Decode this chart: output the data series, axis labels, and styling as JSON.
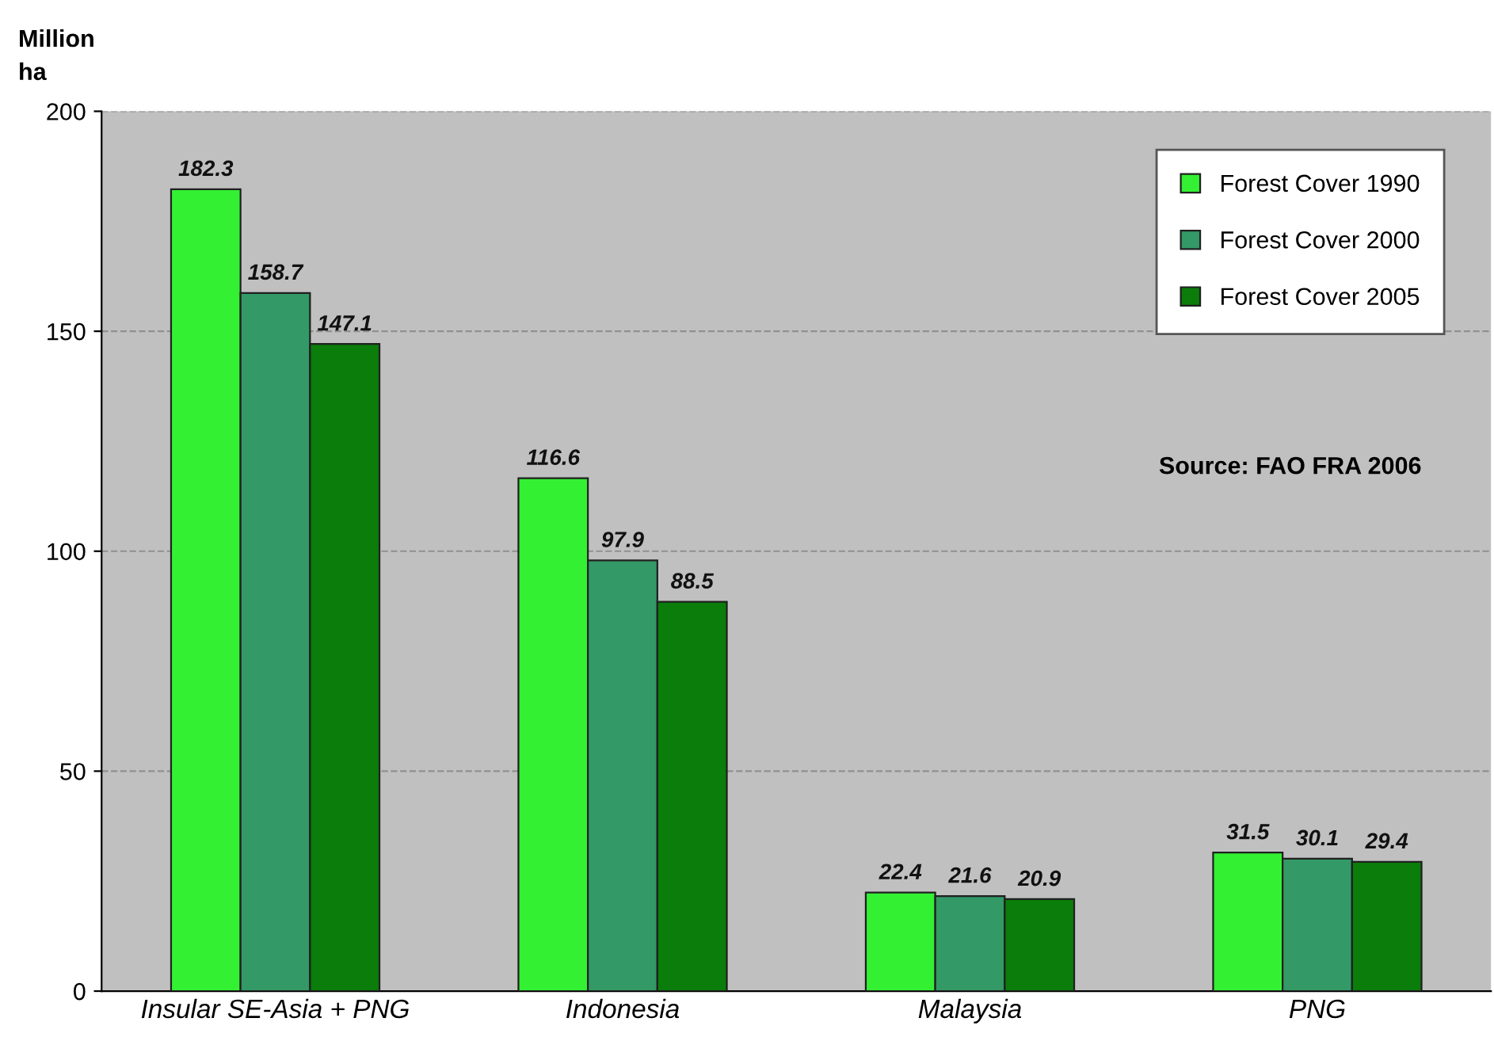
{
  "chart_data": {
    "type": "bar",
    "ylabel": "Million\nha",
    "categories": [
      "Insular SE-Asia + PNG",
      "Indonesia",
      "Malaysia",
      "PNG"
    ],
    "series": [
      {
        "name": "Forest Cover 1990",
        "color": "#33f033",
        "values": [
          182.3,
          116.6,
          22.4,
          31.5
        ]
      },
      {
        "name": "Forest Cover 2000",
        "color": "#339966",
        "values": [
          158.7,
          97.9,
          21.6,
          30.1
        ]
      },
      {
        "name": "Forest Cover 2005",
        "color": "#0a7d0a",
        "values": [
          147.1,
          88.5,
          20.9,
          29.4
        ]
      }
    ],
    "ylim": [
      0,
      200
    ],
    "yticks": [
      0,
      50,
      100,
      150,
      200
    ],
    "grid": "y",
    "legend": "top right",
    "data_labels": true,
    "annotations": [
      "Source: FAO FRA 2006"
    ]
  }
}
